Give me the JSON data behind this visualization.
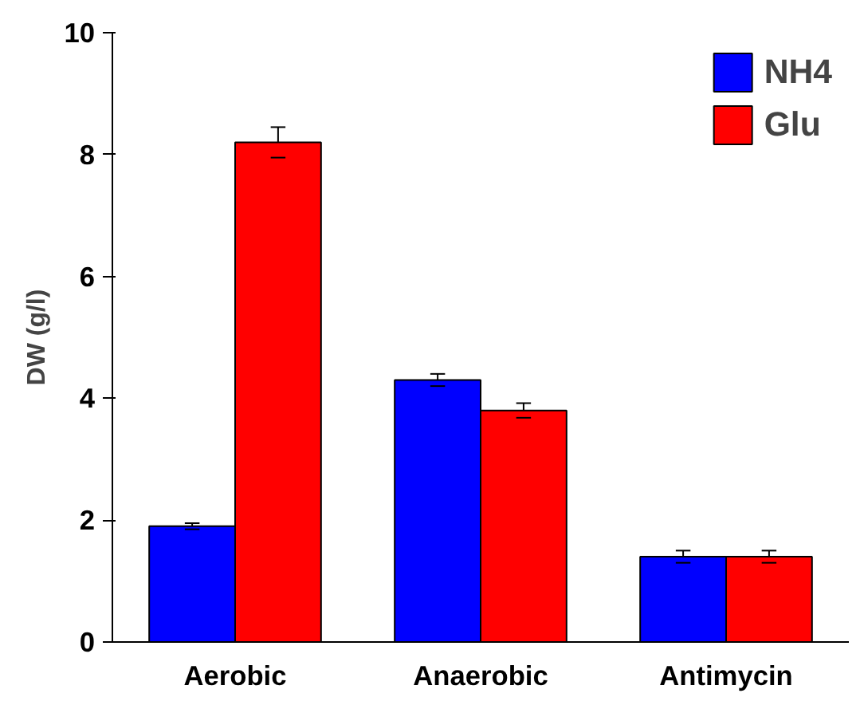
{
  "chart_data": {
    "type": "bar",
    "ylabel": "DW (g/l)",
    "categories": [
      "Aerobic",
      "Anaerobic",
      "Antimycin"
    ],
    "series": [
      {
        "name": "NH4",
        "color": "#0000ff",
        "values": [
          1.9,
          4.3,
          1.4
        ],
        "errors": [
          0.05,
          0.1,
          0.1
        ]
      },
      {
        "name": "Glu",
        "color": "#ff0000",
        "values": [
          8.2,
          3.8,
          1.4
        ],
        "errors": [
          0.25,
          0.12,
          0.1
        ]
      }
    ],
    "ylim": [
      0,
      10
    ],
    "yticks": [
      0,
      2,
      4,
      6,
      8,
      10
    ],
    "grid": false,
    "legend": "top right"
  }
}
